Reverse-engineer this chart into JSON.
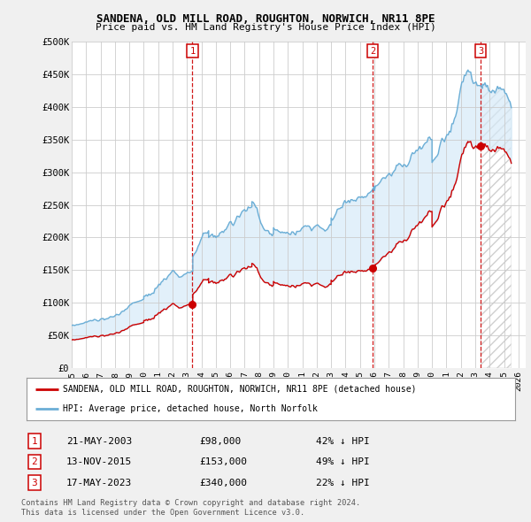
{
  "title": "SANDENA, OLD MILL ROAD, ROUGHTON, NORWICH, NR11 8PE",
  "subtitle": "Price paid vs. HM Land Registry's House Price Index (HPI)",
  "ylim": [
    0,
    500000
  ],
  "yticks": [
    0,
    50000,
    100000,
    150000,
    200000,
    250000,
    300000,
    350000,
    400000,
    450000,
    500000
  ],
  "ytick_labels": [
    "£0",
    "£50K",
    "£100K",
    "£150K",
    "£200K",
    "£250K",
    "£300K",
    "£350K",
    "£400K",
    "£450K",
    "£500K"
  ],
  "xlim_start": 1995.0,
  "xlim_end": 2026.5,
  "xticks": [
    1995,
    1996,
    1997,
    1998,
    1999,
    2000,
    2001,
    2002,
    2003,
    2004,
    2005,
    2006,
    2007,
    2008,
    2009,
    2010,
    2011,
    2012,
    2013,
    2014,
    2015,
    2016,
    2017,
    2018,
    2019,
    2020,
    2021,
    2022,
    2023,
    2024,
    2025,
    2026
  ],
  "hpi_color": "#6baed6",
  "hpi_fill_color": "#d6eaf8",
  "price_color": "#cc0000",
  "vline_color": "#cc0000",
  "grid_color": "#cccccc",
  "bg_color": "#f0f0f0",
  "plot_bg_color": "#ffffff",
  "sale_dates": [
    2003.38,
    2015.87,
    2023.38
  ],
  "sale_prices": [
    98000,
    153000,
    340000
  ],
  "sale_labels": [
    "1",
    "2",
    "3"
  ],
  "sale_hpi_pct": [
    "42% ↓ HPI",
    "49% ↓ HPI",
    "22% ↓ HPI"
  ],
  "sale_date_strs": [
    "21-MAY-2003",
    "13-NOV-2015",
    "17-MAY-2023"
  ],
  "sale_price_strs": [
    "£98,000",
    "£153,000",
    "£340,000"
  ],
  "legend_line1": "SANDENA, OLD MILL ROAD, ROUGHTON, NORWICH, NR11 8PE (detached house)",
  "legend_line2": "HPI: Average price, detached house, North Norfolk",
  "footnote1": "Contains HM Land Registry data © Crown copyright and database right 2024.",
  "footnote2": "This data is licensed under the Open Government Licence v3.0."
}
